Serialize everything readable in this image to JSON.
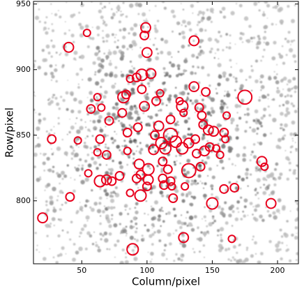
{
  "chart_data": {
    "type": "scatter",
    "xlabel": "Column/pixel",
    "ylabel": "Row/pixel",
    "xlim": [
      13,
      216
    ],
    "ylim": [
      752,
      952
    ],
    "xticks": [
      50,
      100,
      150,
      200
    ],
    "yticks": [
      800,
      850,
      900,
      950
    ],
    "color": "#e8001c",
    "x": [
      54,
      40,
      99,
      98,
      100,
      136,
      87,
      92,
      96,
      103,
      96,
      82,
      84,
      62,
      65,
      57,
      98,
      110,
      107,
      136,
      145,
      175,
      127,
      125,
      128,
      81,
      71,
      140,
      142,
      143,
      147,
      151,
      161,
      93,
      85,
      109,
      118,
      106,
      27,
      47,
      64,
      62,
      69,
      118,
      122,
      114,
      111,
      105,
      127,
      132,
      137,
      138,
      144,
      148,
      153,
      156,
      159,
      160,
      85,
      94,
      101,
      95,
      112,
      116,
      118,
      132,
      141,
      55,
      64,
      73,
      69,
      79,
      92,
      101,
      112,
      100,
      113,
      129,
      119,
      87,
      95,
      159,
      167,
      41,
      120,
      150,
      195,
      188,
      190,
      20,
      128,
      165,
      89
    ],
    "y": [
      928,
      917,
      932,
      926,
      913,
      922,
      893,
      894,
      896,
      897,
      885,
      879,
      881,
      879,
      871,
      870,
      872,
      882,
      876,
      887,
      883,
      879,
      872,
      876,
      867,
      867,
      861,
      871,
      865,
      858,
      854,
      853,
      865,
      856,
      852,
      857,
      862,
      850,
      847,
      846,
      847,
      837,
      835,
      850,
      845,
      840,
      844,
      839,
      840,
      844,
      847,
      836,
      838,
      841,
      840,
      835,
      852,
      847,
      838,
      828,
      824,
      820,
      830,
      824,
      815,
      823,
      826,
      821,
      815,
      815,
      816,
      819,
      817,
      816,
      817,
      811,
      812,
      811,
      811,
      806,
      804,
      809,
      810,
      803,
      802,
      798,
      798,
      830,
      826,
      787,
      772,
      771,
      763
    ],
    "sizes": [
      2.7,
      3.7,
      3.7,
      3.2,
      3.7,
      3.7,
      2.7,
      3.2,
      4.3,
      3.7,
      3.2,
      4.3,
      3.2,
      2.7,
      2.7,
      3.2,
      3.7,
      2.7,
      3.2,
      3.7,
      3.2,
      5.3,
      4.3,
      2.7,
      2.7,
      3.2,
      3.2,
      3.2,
      3.2,
      3.2,
      3.7,
      3.7,
      2.7,
      3.2,
      3.2,
      3.7,
      3.2,
      3.2,
      3.2,
      2.7,
      3.2,
      2.7,
      3.2,
      5.3,
      4.3,
      4.3,
      4.3,
      3.7,
      4.3,
      3.7,
      3.2,
      3.2,
      3.7,
      3.2,
      2.7,
      2.7,
      3.2,
      2.7,
      2.7,
      3.7,
      4.3,
      3.2,
      3.2,
      3.2,
      3.2,
      5.3,
      3.2,
      2.7,
      4.3,
      3.2,
      3.7,
      3.2,
      3.2,
      3.7,
      3.2,
      3.2,
      3.2,
      2.7,
      2.7,
      2.7,
      4.3,
      3.2,
      3.2,
      3.2,
      3.2,
      4.3,
      3.7,
      3.7,
      2.7,
      3.7,
      3.7,
      2.7,
      4.3
    ]
  }
}
